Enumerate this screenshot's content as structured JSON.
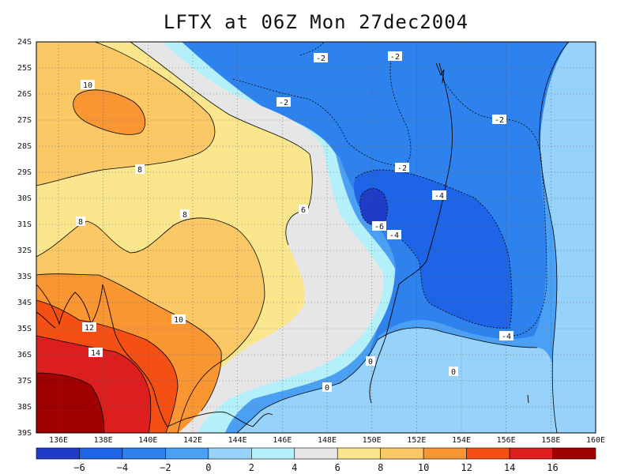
{
  "title": "LFTX at 06Z Mon 27dec2004",
  "palette": {
    "c_m8": "#1e3cc8",
    "c_m6": "#1e64e6",
    "c_m4": "#2e82ee",
    "c_m2": "#4ca0f4",
    "c_0": "#96d2fa",
    "c_2": "#b4f0fa",
    "c_4": "#e6e6e6",
    "c_6": "#fae68c",
    "c_8": "#fac864",
    "c_10": "#fa9632",
    "c_12": "#f55014",
    "c_14": "#dc1e1e",
    "c_16": "#a00000",
    "line": "#000000",
    "grid": "#555555"
  },
  "axes": {
    "lon_ticks": [
      "136E",
      "138E",
      "140E",
      "142E",
      "144E",
      "146E",
      "148E",
      "150E",
      "152E",
      "154E",
      "156E",
      "158E",
      "160E"
    ],
    "lat_ticks": [
      "24S",
      "25S",
      "26S",
      "27S",
      "28S",
      "29S",
      "30S",
      "31S",
      "32S",
      "33S",
      "34S",
      "35S",
      "36S",
      "37S",
      "38S",
      "39S"
    ]
  },
  "colorbar": {
    "labels": [
      "-6",
      "-4",
      "-2",
      "0",
      "2",
      "4",
      "6",
      "8",
      "10",
      "12",
      "14",
      "16"
    ]
  },
  "contour_labels": [
    "-2",
    "-2",
    "-2",
    "-2",
    "-2",
    "-4",
    "-6",
    "-4",
    "-4",
    "6",
    "10",
    "8",
    "8",
    "8",
    "10",
    "12",
    "14",
    "0",
    "0",
    "0"
  ]
}
